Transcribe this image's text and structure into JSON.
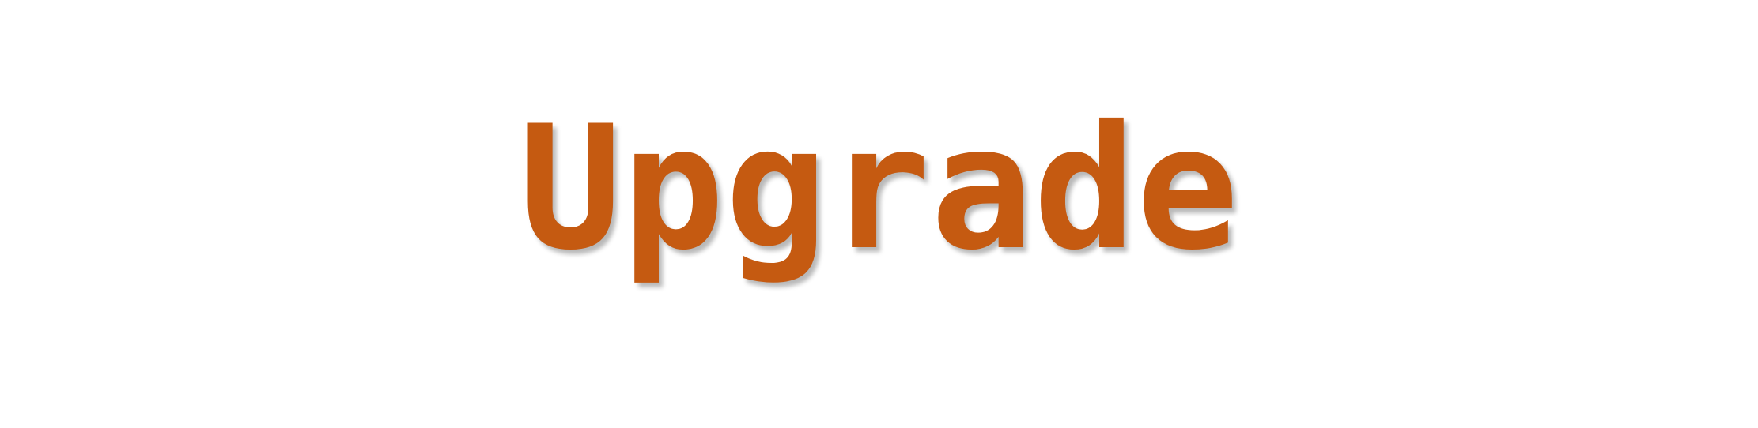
{
  "title": {
    "text": "Upgrade",
    "color": "#c55a11"
  },
  "background": "#ffffff"
}
